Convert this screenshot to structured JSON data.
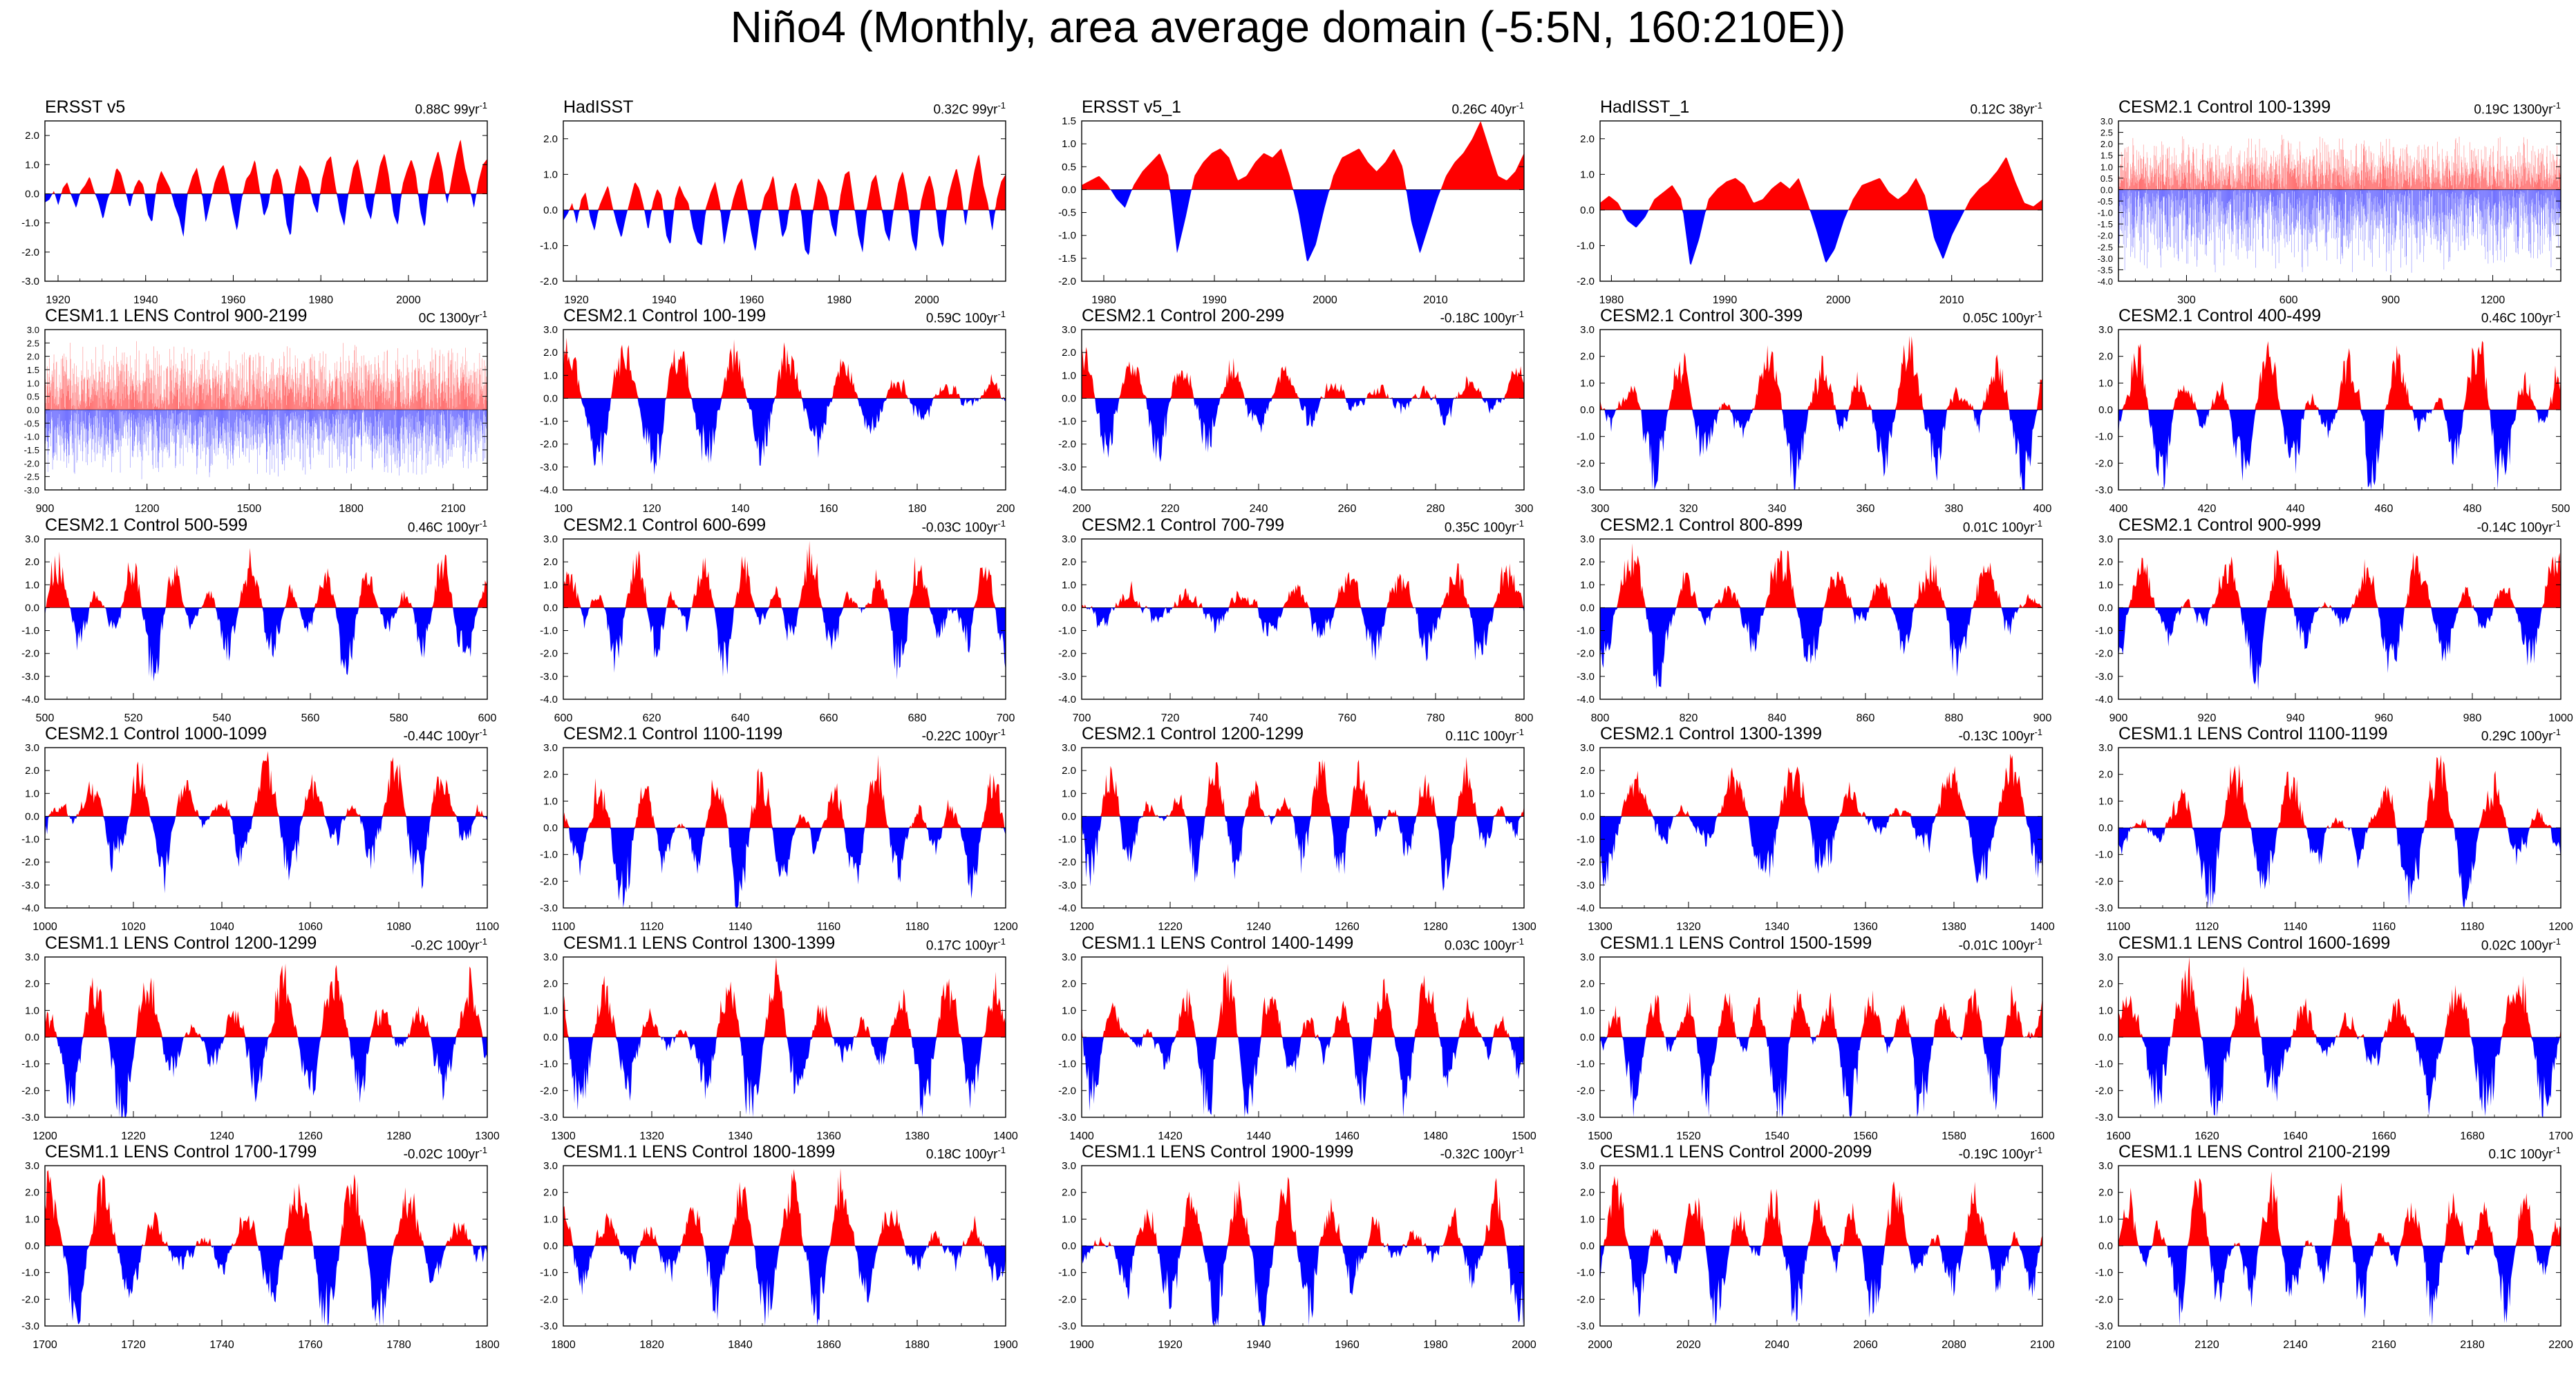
{
  "title": "Niño4 (Monthly, area average domain (-5:5N, 160:210E))",
  "colors": {
    "positive": "#ff0000",
    "negative": "#0000ff",
    "frame": "#000000"
  },
  "trend_unit": "yr",
  "trend_exponent": "-1",
  "chart_data": [
    {
      "type": "area",
      "title": "ERSST v5",
      "trend": "0.88C 99yr",
      "x_range": [
        1917,
        2018
      ],
      "ylim": [
        -3.0,
        2.5
      ],
      "y_ticks": [
        "-3.0",
        "-2.0",
        "-1.0",
        "0.0",
        "1.0",
        "2.0"
      ],
      "x_ticks": [
        "1920",
        "1940",
        "1960",
        "1980",
        "2000"
      ],
      "values": [
        -0.3,
        -0.2,
        0.1,
        -0.4,
        0.2,
        0.4,
        -0.1,
        -0.5,
        0.1,
        0.3,
        0.6,
        0.1,
        -0.3,
        -0.9,
        -0.2,
        0.2,
        0.9,
        0.7,
        0.1,
        -0.5,
        0.2,
        0.5,
        0.3,
        -0.7,
        -1.0,
        0.3,
        0.8,
        0.5,
        0.2,
        -0.4,
        -0.8,
        -1.5,
        0.1,
        0.6,
        0.9,
        0.2,
        -1.0,
        -0.3,
        0.4,
        0.8,
        1.0,
        0.3,
        -0.6,
        -1.3,
        -0.2,
        0.5,
        0.7,
        1.2,
        0.2,
        -0.8,
        -0.4,
        0.6,
        0.9,
        0.4,
        -1.0,
        -1.5,
        0.2,
        1.0,
        0.8,
        0.5,
        -0.3,
        -0.7,
        0.5,
        1.1,
        1.3,
        0.3,
        -0.6,
        -1.1,
        0.1,
        0.9,
        1.2,
        0.4,
        -0.5,
        -0.9,
        0.2,
        1.0,
        1.4,
        0.6,
        -0.7,
        -1.1,
        0.3,
        0.8,
        1.2,
        0.7,
        -0.6,
        -1.2,
        0.4,
        1.0,
        1.5,
        0.8,
        -0.4,
        0.5,
        1.3,
        1.9,
        0.9,
        0.3,
        -0.5,
        0.4,
        1.0,
        1.2
      ]
    },
    {
      "type": "area",
      "title": "HadISST",
      "trend": "0.32C 99yr",
      "x_range": [
        1917,
        2018
      ],
      "ylim": [
        -2.0,
        2.5
      ],
      "y_ticks": [
        "-2.0",
        "-1.0",
        "0.0",
        "1.0",
        "2.0"
      ],
      "x_ticks": [
        "1920",
        "1940",
        "1960",
        "1980",
        "2000"
      ],
      "values": [
        -0.3,
        -0.1,
        0.2,
        -0.4,
        0.3,
        0.5,
        -0.2,
        -0.6,
        0.1,
        0.4,
        0.7,
        0.1,
        -0.4,
        -0.8,
        -0.2,
        0.3,
        0.8,
        0.6,
        0.1,
        -0.6,
        0.2,
        0.6,
        0.4,
        -0.7,
        -1.0,
        0.3,
        0.7,
        0.4,
        0.2,
        -0.5,
        -0.9,
        -1.0,
        0.1,
        0.5,
        0.8,
        0.2,
        -1.0,
        -0.3,
        0.3,
        0.7,
        0.9,
        0.2,
        -0.6,
        -1.2,
        -0.2,
        0.4,
        0.6,
        1.0,
        0.1,
        -0.8,
        -0.5,
        0.5,
        0.8,
        0.3,
        -1.1,
        -1.3,
        0.1,
        0.9,
        0.7,
        0.4,
        -0.4,
        -0.8,
        0.4,
        1.0,
        1.1,
        0.2,
        -0.7,
        -1.2,
        0.1,
        0.8,
        1.0,
        0.3,
        -0.6,
        -0.9,
        0.1,
        0.8,
        1.1,
        0.4,
        -0.8,
        -1.2,
        0.2,
        0.7,
        1.0,
        0.5,
        -0.7,
        -1.1,
        0.3,
        0.8,
        1.2,
        0.6,
        -0.5,
        0.4,
        1.1,
        1.6,
        0.7,
        0.2,
        -0.6,
        0.3,
        0.8,
        1.0
      ]
    },
    {
      "type": "area",
      "title": "ERSST v5_1",
      "trend": "0.26C 40yr",
      "x_range": [
        1978,
        2018
      ],
      "ylim": [
        -2.0,
        1.5
      ],
      "y_ticks": [
        "-2.0",
        "-1.5",
        "-1.0",
        "-0.5",
        "0.0",
        "0.5",
        "1.0",
        "1.5"
      ],
      "x_ticks": [
        "1980",
        "1990",
        "2000",
        "2010"
      ],
      "values": [
        0.1,
        0.2,
        0.3,
        0.1,
        -0.2,
        -0.4,
        0.1,
        0.4,
        0.6,
        0.8,
        0.3,
        -1.4,
        -0.6,
        0.3,
        0.6,
        0.8,
        0.9,
        0.7,
        0.2,
        0.3,
        0.6,
        0.8,
        0.7,
        0.9,
        0.3,
        -0.5,
        -1.6,
        -1.2,
        -0.4,
        0.3,
        0.7,
        0.8,
        0.9,
        0.6,
        0.4,
        0.6,
        0.9,
        0.5,
        -0.7,
        -1.4,
        -0.8,
        -0.2,
        0.3,
        0.6,
        0.8,
        1.1,
        1.5,
        0.9,
        0.3,
        0.2,
        0.4,
        0.8
      ]
    },
    {
      "type": "area",
      "title": "HadISST_1",
      "trend": "0.12C 38yr",
      "x_range": [
        1979,
        2018
      ],
      "ylim": [
        -2.0,
        2.5
      ],
      "y_ticks": [
        "-2.0",
        "-1.0",
        "0.0",
        "1.0",
        "2.0"
      ],
      "x_ticks": [
        "1980",
        "1990",
        "2000",
        "2010"
      ],
      "values": [
        0.2,
        0.4,
        0.2,
        -0.3,
        -0.5,
        -0.2,
        0.3,
        0.5,
        0.7,
        0.3,
        -1.6,
        -0.8,
        0.3,
        0.6,
        0.8,
        0.9,
        0.7,
        0.2,
        0.3,
        0.6,
        0.8,
        0.6,
        0.9,
        0.2,
        -0.6,
        -1.5,
        -1.1,
        -0.3,
        0.3,
        0.7,
        0.8,
        0.9,
        0.5,
        0.3,
        0.5,
        0.9,
        0.4,
        -0.8,
        -1.4,
        -0.7,
        -0.2,
        0.3,
        0.6,
        0.8,
        1.1,
        1.5,
        0.8,
        0.2,
        0.1,
        0.3
      ]
    },
    {
      "type": "area",
      "title": "CESM2.1 Control 100-1399",
      "trend": "0.19C 1300yr",
      "x_range": [
        100,
        1400
      ],
      "ylim": [
        -4.0,
        3.0
      ],
      "y_ticks": [
        "-4.0",
        "-3.5",
        "-3.0",
        "-2.5",
        "-2.0",
        "-1.5",
        "-1.0",
        "-0.5",
        "0.0",
        "0.5",
        "1.0",
        "1.5",
        "2.0",
        "2.5",
        "3.0"
      ],
      "x_ticks": [
        "300",
        "600",
        "900",
        "1200"
      ],
      "dense": true,
      "amp": [
        2.5,
        -3.8
      ]
    },
    {
      "type": "area",
      "title": "CESM1.1 LENS Control 900-2199",
      "trend": "0C 1300yr",
      "x_range": [
        900,
        2200
      ],
      "ylim": [
        -3.0,
        3.0
      ],
      "y_ticks": [
        "-3.0",
        "-2.5",
        "-2.0",
        "-1.5",
        "-1.0",
        "-0.5",
        "0.0",
        "0.5",
        "1.0",
        "1.5",
        "2.0",
        "2.5",
        "3.0"
      ],
      "x_ticks": [
        "900",
        "1200",
        "1500",
        "1800",
        "2100"
      ],
      "dense": true,
      "amp": [
        2.6,
        -2.7
      ]
    },
    {
      "type": "area",
      "title": "CESM2.1 Control 100-199",
      "trend": "0.59C 100yr",
      "x_range": [
        100,
        200
      ],
      "ylim": [
        -4.0,
        3.0
      ],
      "y_ticks": [
        "-4.0",
        "-3.0",
        "-2.0",
        "-1.0",
        "0.0",
        "1.0",
        "2.0",
        "3.0"
      ],
      "x_ticks": [
        "100",
        "120",
        "140",
        "160",
        "180",
        "200"
      ],
      "seed": 11
    },
    {
      "type": "area",
      "title": "CESM2.1 Control 200-299",
      "trend": "-0.18C 100yr",
      "x_range": [
        200,
        300
      ],
      "ylim": [
        -4.0,
        3.0
      ],
      "y_ticks": [
        "-4.0",
        "-3.0",
        "-2.0",
        "-1.0",
        "0.0",
        "1.0",
        "2.0",
        "3.0"
      ],
      "x_ticks": [
        "200",
        "220",
        "240",
        "260",
        "280",
        "300"
      ],
      "seed": 12
    },
    {
      "type": "area",
      "title": "CESM2.1 Control 300-399",
      "trend": "0.05C 100yr",
      "x_range": [
        300,
        400
      ],
      "ylim": [
        -3.0,
        3.0
      ],
      "y_ticks": [
        "-3.0",
        "-2.0",
        "-1.0",
        "0.0",
        "1.0",
        "2.0",
        "3.0"
      ],
      "x_ticks": [
        "300",
        "320",
        "340",
        "360",
        "380",
        "400"
      ],
      "seed": 13
    },
    {
      "type": "area",
      "title": "CESM2.1 Control 400-499",
      "trend": "0.46C 100yr",
      "x_range": [
        400,
        500
      ],
      "ylim": [
        -3.0,
        3.0
      ],
      "y_ticks": [
        "-3.0",
        "-2.0",
        "-1.0",
        "0.0",
        "1.0",
        "2.0",
        "3.0"
      ],
      "x_ticks": [
        "400",
        "420",
        "440",
        "460",
        "480",
        "500"
      ],
      "seed": 14
    },
    {
      "type": "area",
      "title": "CESM2.1 Control 500-599",
      "trend": "0.46C 100yr",
      "x_range": [
        500,
        600
      ],
      "ylim": [
        -4.0,
        3.0
      ],
      "y_ticks": [
        "-4.0",
        "-3.0",
        "-2.0",
        "-1.0",
        "0.0",
        "1.0",
        "2.0",
        "3.0"
      ],
      "x_ticks": [
        "500",
        "520",
        "540",
        "560",
        "580",
        "600"
      ],
      "seed": 15
    },
    {
      "type": "area",
      "title": "CESM2.1 Control 600-699",
      "trend": "-0.03C 100yr",
      "x_range": [
        600,
        700
      ],
      "ylim": [
        -4.0,
        3.0
      ],
      "y_ticks": [
        "-4.0",
        "-3.0",
        "-2.0",
        "-1.0",
        "0.0",
        "1.0",
        "2.0",
        "3.0"
      ],
      "x_ticks": [
        "600",
        "620",
        "640",
        "660",
        "680",
        "700"
      ],
      "seed": 16
    },
    {
      "type": "area",
      "title": "CESM2.1 Control 700-799",
      "trend": "0.35C 100yr",
      "x_range": [
        700,
        800
      ],
      "ylim": [
        -4.0,
        3.0
      ],
      "y_ticks": [
        "-4.0",
        "-3.0",
        "-2.0",
        "-1.0",
        "0.0",
        "1.0",
        "2.0",
        "3.0"
      ],
      "x_ticks": [
        "700",
        "720",
        "740",
        "760",
        "780",
        "800"
      ],
      "seed": 17
    },
    {
      "type": "area",
      "title": "CESM2.1 Control 800-899",
      "trend": "0.01C 100yr",
      "x_range": [
        800,
        900
      ],
      "ylim": [
        -4.0,
        3.0
      ],
      "y_ticks": [
        "-4.0",
        "-3.0",
        "-2.0",
        "-1.0",
        "0.0",
        "1.0",
        "2.0",
        "3.0"
      ],
      "x_ticks": [
        "800",
        "820",
        "840",
        "860",
        "880",
        "900"
      ],
      "seed": 18
    },
    {
      "type": "area",
      "title": "CESM2.1 Control 900-999",
      "trend": "-0.14C 100yr",
      "x_range": [
        900,
        1000
      ],
      "ylim": [
        -4.0,
        3.0
      ],
      "y_ticks": [
        "-4.0",
        "-3.0",
        "-2.0",
        "-1.0",
        "0.0",
        "1.0",
        "2.0",
        "3.0"
      ],
      "x_ticks": [
        "900",
        "920",
        "940",
        "960",
        "980",
        "1000"
      ],
      "seed": 19
    },
    {
      "type": "area",
      "title": "CESM2.1 Control 1000-1099",
      "trend": "-0.44C 100yr",
      "x_range": [
        1000,
        1100
      ],
      "ylim": [
        -4.0,
        3.0
      ],
      "y_ticks": [
        "-4.0",
        "-3.0",
        "-2.0",
        "-1.0",
        "0.0",
        "1.0",
        "2.0",
        "3.0"
      ],
      "x_ticks": [
        "1000",
        "1020",
        "1040",
        "1060",
        "1080",
        "1100"
      ],
      "seed": 20
    },
    {
      "type": "area",
      "title": "CESM2.1 Control 1100-1199",
      "trend": "-0.22C 100yr",
      "x_range": [
        1100,
        1200
      ],
      "ylim": [
        -3.0,
        3.0
      ],
      "y_ticks": [
        "-3.0",
        "-2.0",
        "-1.0",
        "0.0",
        "1.0",
        "2.0",
        "3.0"
      ],
      "x_ticks": [
        "1100",
        "1120",
        "1140",
        "1160",
        "1180",
        "1200"
      ],
      "seed": 21
    },
    {
      "type": "area",
      "title": "CESM2.1 Control 1200-1299",
      "trend": "0.11C 100yr",
      "x_range": [
        1200,
        1300
      ],
      "ylim": [
        -4.0,
        3.0
      ],
      "y_ticks": [
        "-4.0",
        "-3.0",
        "-2.0",
        "-1.0",
        "0.0",
        "1.0",
        "2.0",
        "3.0"
      ],
      "x_ticks": [
        "1200",
        "1220",
        "1240",
        "1260",
        "1280",
        "1300"
      ],
      "seed": 22
    },
    {
      "type": "area",
      "title": "CESM2.1 Control 1300-1399",
      "trend": "-0.13C 100yr",
      "x_range": [
        1300,
        1400
      ],
      "ylim": [
        -4.0,
        3.0
      ],
      "y_ticks": [
        "-4.0",
        "-3.0",
        "-2.0",
        "-1.0",
        "0.0",
        "1.0",
        "2.0",
        "3.0"
      ],
      "x_ticks": [
        "1300",
        "1320",
        "1340",
        "1360",
        "1380",
        "1400"
      ],
      "seed": 23
    },
    {
      "type": "area",
      "title": "CESM1.1 LENS Control 1100-1199",
      "trend": "0.29C 100yr",
      "x_range": [
        1100,
        1200
      ],
      "ylim": [
        -3.0,
        3.0
      ],
      "y_ticks": [
        "-3.0",
        "-2.0",
        "-1.0",
        "0.0",
        "1.0",
        "2.0",
        "3.0"
      ],
      "x_ticks": [
        "1100",
        "1120",
        "1140",
        "1160",
        "1180",
        "1200"
      ],
      "seed": 24
    },
    {
      "type": "area",
      "title": "CESM1.1 LENS Control 1200-1299",
      "trend": "-0.2C 100yr",
      "x_range": [
        1200,
        1300
      ],
      "ylim": [
        -3.0,
        3.0
      ],
      "y_ticks": [
        "-3.0",
        "-2.0",
        "-1.0",
        "0.0",
        "1.0",
        "2.0",
        "3.0"
      ],
      "x_ticks": [
        "1200",
        "1220",
        "1240",
        "1260",
        "1280",
        "1300"
      ],
      "seed": 25
    },
    {
      "type": "area",
      "title": "CESM1.1 LENS Control 1300-1399",
      "trend": "0.17C 100yr",
      "x_range": [
        1300,
        1400
      ],
      "ylim": [
        -3.0,
        3.0
      ],
      "y_ticks": [
        "-3.0",
        "-2.0",
        "-1.0",
        "0.0",
        "1.0",
        "2.0",
        "3.0"
      ],
      "x_ticks": [
        "1300",
        "1320",
        "1340",
        "1360",
        "1380",
        "1400"
      ],
      "seed": 26
    },
    {
      "type": "area",
      "title": "CESM1.1 LENS Control 1400-1499",
      "trend": "0.03C 100yr",
      "x_range": [
        1400,
        1500
      ],
      "ylim": [
        -3.0,
        3.0
      ],
      "y_ticks": [
        "-3.0",
        "-2.0",
        "-1.0",
        "0.0",
        "1.0",
        "2.0",
        "3.0"
      ],
      "x_ticks": [
        "1400",
        "1420",
        "1440",
        "1460",
        "1480",
        "1500"
      ],
      "seed": 27
    },
    {
      "type": "area",
      "title": "CESM1.1 LENS Control 1500-1599",
      "trend": "-0.01C 100yr",
      "x_range": [
        1500,
        1600
      ],
      "ylim": [
        -3.0,
        3.0
      ],
      "y_ticks": [
        "-3.0",
        "-2.0",
        "-1.0",
        "0.0",
        "1.0",
        "2.0",
        "3.0"
      ],
      "x_ticks": [
        "1500",
        "1520",
        "1540",
        "1560",
        "1580",
        "1600"
      ],
      "seed": 28
    },
    {
      "type": "area",
      "title": "CESM1.1 LENS Control 1600-1699",
      "trend": "0.02C 100yr",
      "x_range": [
        1600,
        1700
      ],
      "ylim": [
        -3.0,
        3.0
      ],
      "y_ticks": [
        "-3.0",
        "-2.0",
        "-1.0",
        "0.0",
        "1.0",
        "2.0",
        "3.0"
      ],
      "x_ticks": [
        "1600",
        "1620",
        "1640",
        "1660",
        "1680",
        "1700"
      ],
      "seed": 29
    },
    {
      "type": "area",
      "title": "CESM1.1 LENS Control 1700-1799",
      "trend": "-0.02C 100yr",
      "x_range": [
        1700,
        1800
      ],
      "ylim": [
        -3.0,
        3.0
      ],
      "y_ticks": [
        "-3.0",
        "-2.0",
        "-1.0",
        "0.0",
        "1.0",
        "2.0",
        "3.0"
      ],
      "x_ticks": [
        "1700",
        "1720",
        "1740",
        "1760",
        "1780",
        "1800"
      ],
      "seed": 30
    },
    {
      "type": "area",
      "title": "CESM1.1 LENS Control 1800-1899",
      "trend": "0.18C 100yr",
      "x_range": [
        1800,
        1900
      ],
      "ylim": [
        -3.0,
        3.0
      ],
      "y_ticks": [
        "-3.0",
        "-2.0",
        "-1.0",
        "0.0",
        "1.0",
        "2.0",
        "3.0"
      ],
      "x_ticks": [
        "1800",
        "1820",
        "1840",
        "1860",
        "1880",
        "1900"
      ],
      "seed": 31
    },
    {
      "type": "area",
      "title": "CESM1.1 LENS Control 1900-1999",
      "trend": "-0.32C 100yr",
      "x_range": [
        1900,
        2000
      ],
      "ylim": [
        -3.0,
        3.0
      ],
      "y_ticks": [
        "-3.0",
        "-2.0",
        "-1.0",
        "0.0",
        "1.0",
        "2.0",
        "3.0"
      ],
      "x_ticks": [
        "1900",
        "1920",
        "1940",
        "1960",
        "1980",
        "2000"
      ],
      "seed": 32
    },
    {
      "type": "area",
      "title": "CESM1.1 LENS Control 2000-2099",
      "trend": "-0.19C 100yr",
      "x_range": [
        2000,
        2100
      ],
      "ylim": [
        -3.0,
        3.0
      ],
      "y_ticks": [
        "-3.0",
        "-2.0",
        "-1.0",
        "0.0",
        "1.0",
        "2.0",
        "3.0"
      ],
      "x_ticks": [
        "2000",
        "2020",
        "2040",
        "2060",
        "2080",
        "2100"
      ],
      "seed": 33
    },
    {
      "type": "area",
      "title": "CESM1.1 LENS Control 2100-2199",
      "trend": "0.1C 100yr",
      "x_range": [
        2100,
        2200
      ],
      "ylim": [
        -3.0,
        3.0
      ],
      "y_ticks": [
        "-3.0",
        "-2.0",
        "-1.0",
        "0.0",
        "1.0",
        "2.0",
        "3.0"
      ],
      "x_ticks": [
        "2100",
        "2120",
        "2140",
        "2160",
        "2180",
        "2200"
      ],
      "seed": 34
    }
  ]
}
